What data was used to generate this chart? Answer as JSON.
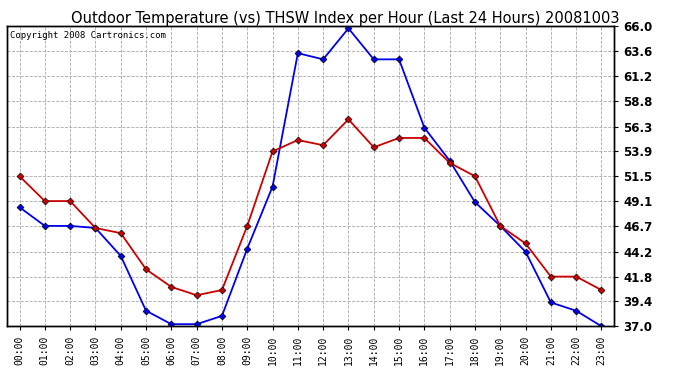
{
  "title": "Outdoor Temperature (vs) THSW Index per Hour (Last 24 Hours) 20081003",
  "copyright": "Copyright 2008 Cartronics.com",
  "hours": [
    "00:00",
    "01:00",
    "02:00",
    "03:00",
    "04:00",
    "05:00",
    "06:00",
    "07:00",
    "08:00",
    "09:00",
    "10:00",
    "11:00",
    "12:00",
    "13:00",
    "14:00",
    "15:00",
    "16:00",
    "17:00",
    "18:00",
    "19:00",
    "20:00",
    "21:00",
    "22:00",
    "23:00"
  ],
  "temp_blue": [
    48.5,
    46.7,
    46.7,
    46.5,
    43.8,
    38.5,
    37.2,
    37.2,
    38.0,
    44.5,
    50.5,
    63.4,
    62.8,
    65.8,
    62.8,
    62.8,
    56.2,
    53.0,
    49.0,
    46.7,
    44.2,
    39.3,
    38.5,
    37.0
  ],
  "temp_red": [
    51.5,
    49.1,
    49.1,
    46.5,
    46.0,
    42.5,
    40.8,
    40.0,
    40.5,
    46.7,
    53.9,
    55.0,
    54.5,
    57.0,
    54.3,
    55.2,
    55.2,
    52.8,
    51.5,
    46.7,
    45.0,
    41.8,
    41.8,
    40.5
  ],
  "ymin": 37.0,
  "ymax": 66.0,
  "yticks": [
    37.0,
    39.4,
    41.8,
    44.2,
    46.7,
    49.1,
    51.5,
    53.9,
    56.3,
    58.8,
    61.2,
    63.6,
    66.0
  ],
  "blue_color": "#0000EE",
  "red_color": "#CC0000",
  "bg_color": "#FFFFFF",
  "grid_color": "#AAAAAA",
  "title_fontsize": 10.5,
  "copyright_fontsize": 6.5,
  "ytick_fontsize": 8.5
}
